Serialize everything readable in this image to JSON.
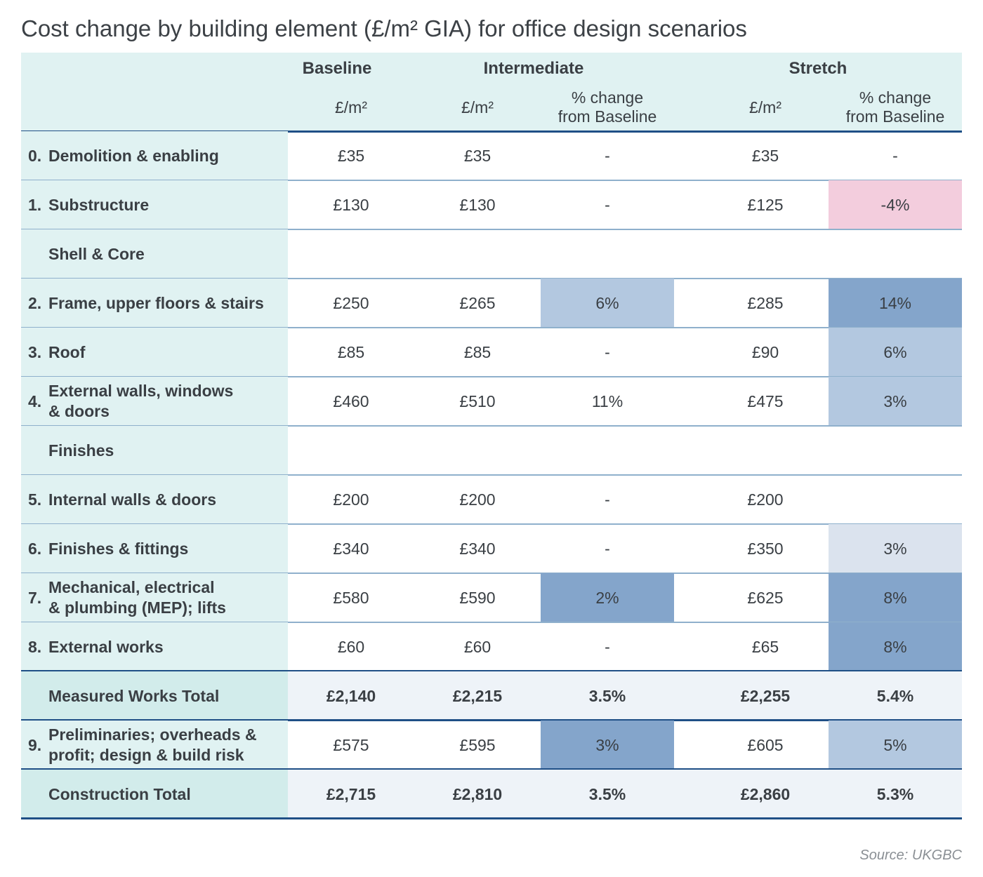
{
  "title": "Cost change by building element (£/m² GIA) for office design scenarios",
  "source": "Source: UKGBC",
  "colors": {
    "header_bg": "#e0f2f2",
    "total_label_bg": "#d2eceb",
    "total_row_bg": "#eef3f8",
    "shade_dark": "#84a5cb",
    "shade_mid": "#b3c8e0",
    "shade_light": "#dbe3ee",
    "shade_negative": "#f3cddd",
    "rule_dark": "#1f4f86",
    "rule_light": "#8fb0cc"
  },
  "chart_data": {
    "type": "table",
    "groups": [
      "Baseline",
      "Intermediate",
      "Stretch"
    ],
    "column_headers": [
      "£/m²",
      "£/m²",
      "% change\nfrom Baseline",
      "£/m²",
      "% change\nfrom Baseline"
    ],
    "rows": [
      {
        "num": "0.",
        "label": "Demolition & enabling",
        "kind": "item",
        "cells": [
          "£35",
          "£35",
          "-",
          "£35",
          "-"
        ],
        "shade": [
          "",
          "",
          "",
          "",
          ""
        ]
      },
      {
        "num": "1.",
        "label": "Substructure",
        "kind": "item",
        "cells": [
          "£130",
          "£130",
          "-",
          "£125",
          "-4%"
        ],
        "shade": [
          "",
          "",
          "",
          "",
          "negative"
        ]
      },
      {
        "num": "",
        "label": "Shell & Core",
        "kind": "section",
        "cells": [
          "",
          "",
          "",
          "",
          ""
        ],
        "shade": [
          "",
          "",
          "",
          "",
          ""
        ]
      },
      {
        "num": "2.",
        "label": "Frame, upper floors & stairs",
        "kind": "item",
        "cells": [
          "£250",
          "£265",
          "6%",
          "£285",
          "14%"
        ],
        "shade": [
          "",
          "",
          "mid",
          "",
          "dark"
        ]
      },
      {
        "num": "3.",
        "label": "Roof",
        "kind": "item",
        "cells": [
          "£85",
          "£85",
          "-",
          "£90",
          "6%"
        ],
        "shade": [
          "",
          "",
          "",
          "",
          "mid"
        ]
      },
      {
        "num": "4.",
        "label": "External walls, windows\n& doors",
        "kind": "item",
        "cells": [
          "£460",
          "£510",
          "11%",
          "£475",
          "3%"
        ],
        "shade": [
          "",
          "",
          "",
          "",
          "mid"
        ]
      },
      {
        "num": "",
        "label": "Finishes",
        "kind": "section",
        "cells": [
          "",
          "",
          "",
          "",
          ""
        ],
        "shade": [
          "",
          "",
          "",
          "",
          ""
        ]
      },
      {
        "num": "5.",
        "label": "Internal walls & doors",
        "kind": "item",
        "cells": [
          "£200",
          "£200",
          "-",
          "£200",
          ""
        ],
        "shade": [
          "",
          "",
          "",
          "",
          ""
        ]
      },
      {
        "num": "6.",
        "label": "Finishes & fittings",
        "kind": "item",
        "cells": [
          "£340",
          "£340",
          "-",
          "£350",
          "3%"
        ],
        "shade": [
          "",
          "",
          "",
          "",
          "light"
        ]
      },
      {
        "num": "7.",
        "label": "Mechanical, electrical\n& plumbing (MEP); lifts",
        "kind": "item",
        "cells": [
          "£580",
          "£590",
          "2%",
          "£625",
          "8%"
        ],
        "shade": [
          "",
          "",
          "dark",
          "",
          "dark"
        ]
      },
      {
        "num": "8.",
        "label": "External works",
        "kind": "item",
        "cells": [
          "£60",
          "£60",
          "-",
          "£65",
          "8%"
        ],
        "shade": [
          "",
          "",
          "",
          "",
          "dark"
        ]
      },
      {
        "num": "",
        "label": "Measured Works Total",
        "kind": "total",
        "cells": [
          "£2,140",
          "£2,215",
          "3.5%",
          "£2,255",
          "5.4%"
        ],
        "shade": [
          "",
          "",
          "",
          "",
          ""
        ]
      },
      {
        "num": "9.",
        "label": "Preliminaries; overheads &\nprofit; design & build risk",
        "kind": "item",
        "cells": [
          "£575",
          "£595",
          "3%",
          "£605",
          "5%"
        ],
        "shade": [
          "",
          "",
          "dark",
          "",
          "mid"
        ]
      },
      {
        "num": "",
        "label": "Construction Total",
        "kind": "total",
        "cells": [
          "£2,715",
          "£2,810",
          "3.5%",
          "£2,860",
          "5.3%"
        ],
        "shade": [
          "",
          "",
          "",
          "",
          ""
        ]
      }
    ]
  }
}
